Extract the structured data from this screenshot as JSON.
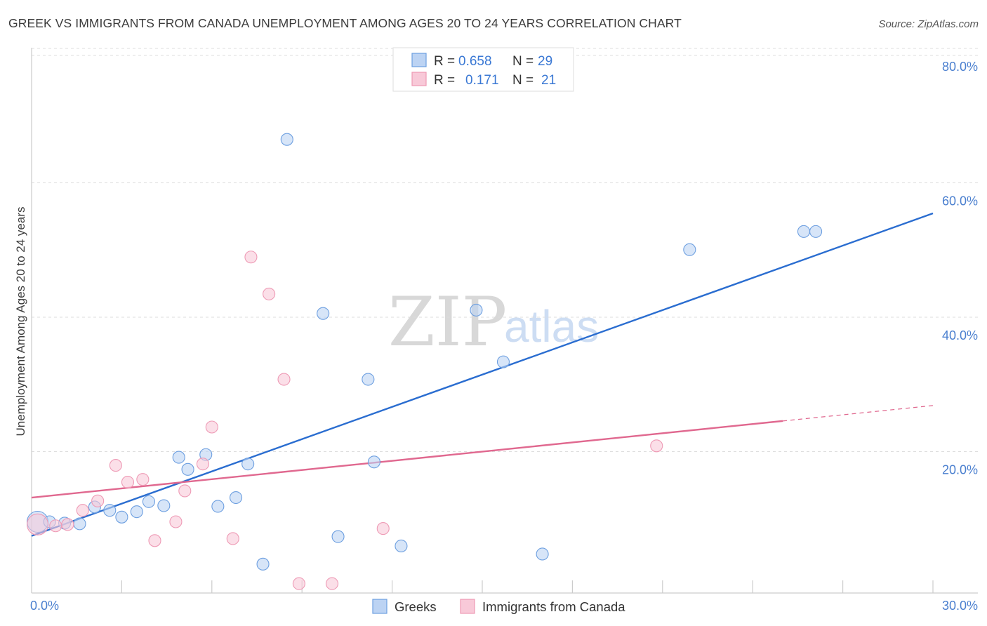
{
  "title": "GREEK VS IMMIGRANTS FROM CANADA UNEMPLOYMENT AMONG AGES 20 TO 24 YEARS CORRELATION CHART",
  "source": "Source: ZipAtlas.com",
  "watermark": {
    "zip": "ZIP",
    "atlas": "atlas"
  },
  "legend": {
    "r_label": "R =",
    "n_label": "N =",
    "series": [
      {
        "name": "Greeks",
        "r": "0.658",
        "n": "29"
      },
      {
        "name": "Immigrants from Canada",
        "r": "0.171",
        "n": "21"
      }
    ]
  },
  "chart_data": {
    "type": "scatter",
    "xlabel": "",
    "ylabel": "Unemployment Among Ages 20 to 24 years",
    "xlim": [
      0,
      30
    ],
    "ylim": [
      0,
      80
    ],
    "x_tick_labels": [
      "0.0%",
      "30.0%"
    ],
    "y_ticks": [
      20,
      40,
      60,
      80
    ],
    "y_tick_labels": [
      "20.0%",
      "40.0%",
      "60.0%",
      "80.0%"
    ],
    "series": [
      {
        "name": "Greeks",
        "color": "#6d9fe0",
        "fill": "#bcd3f3",
        "line_color": "#2a6dd0",
        "trend": {
          "x": [
            0,
            30
          ],
          "y": [
            8.5,
            56.5
          ]
        },
        "points": [
          {
            "x": 0.2,
            "y": 10.6,
            "big": true
          },
          {
            "x": 0.6,
            "y": 10.6
          },
          {
            "x": 1.1,
            "y": 10.4
          },
          {
            "x": 1.6,
            "y": 10.3
          },
          {
            "x": 2.1,
            "y": 12.8
          },
          {
            "x": 2.6,
            "y": 12.3
          },
          {
            "x": 3.0,
            "y": 11.3
          },
          {
            "x": 3.5,
            "y": 12.1
          },
          {
            "x": 3.9,
            "y": 13.6
          },
          {
            "x": 4.4,
            "y": 13.0
          },
          {
            "x": 4.9,
            "y": 20.2
          },
          {
            "x": 5.2,
            "y": 18.4
          },
          {
            "x": 5.8,
            "y": 20.6
          },
          {
            "x": 6.2,
            "y": 12.9
          },
          {
            "x": 6.8,
            "y": 14.2
          },
          {
            "x": 7.2,
            "y": 19.2
          },
          {
            "x": 7.7,
            "y": 4.3
          },
          {
            "x": 8.5,
            "y": 67.5
          },
          {
            "x": 9.7,
            "y": 41.6
          },
          {
            "x": 10.2,
            "y": 8.4
          },
          {
            "x": 11.2,
            "y": 31.8
          },
          {
            "x": 11.4,
            "y": 19.5
          },
          {
            "x": 12.3,
            "y": 7.0
          },
          {
            "x": 14.8,
            "y": 42.1
          },
          {
            "x": 15.7,
            "y": 34.4
          },
          {
            "x": 17.0,
            "y": 5.8
          },
          {
            "x": 21.9,
            "y": 51.1
          },
          {
            "x": 25.7,
            "y": 53.8
          },
          {
            "x": 26.1,
            "y": 53.8
          }
        ]
      },
      {
        "name": "Immigrants from Canada",
        "color": "#ee9ab5",
        "fill": "#f8c9d8",
        "line_color": "#e0688f",
        "trend": {
          "x": [
            0,
            25.0
          ],
          "y": [
            14.2,
            25.6
          ]
        },
        "trend_dashed": {
          "x": [
            25.0,
            30
          ],
          "y": [
            25.6,
            27.9
          ]
        },
        "points": [
          {
            "x": 0.2,
            "y": 10.2,
            "big": true
          },
          {
            "x": 0.8,
            "y": 10.0
          },
          {
            "x": 1.2,
            "y": 10.2
          },
          {
            "x": 1.7,
            "y": 12.3
          },
          {
            "x": 2.2,
            "y": 13.7
          },
          {
            "x": 2.8,
            "y": 19.0
          },
          {
            "x": 3.2,
            "y": 16.5
          },
          {
            "x": 3.7,
            "y": 16.9
          },
          {
            "x": 4.1,
            "y": 7.8
          },
          {
            "x": 4.8,
            "y": 10.6
          },
          {
            "x": 5.1,
            "y": 15.2
          },
          {
            "x": 5.7,
            "y": 19.2
          },
          {
            "x": 6.0,
            "y": 24.7
          },
          {
            "x": 6.7,
            "y": 8.1
          },
          {
            "x": 7.3,
            "y": 50.0
          },
          {
            "x": 7.9,
            "y": 44.5
          },
          {
            "x": 8.4,
            "y": 31.8
          },
          {
            "x": 8.9,
            "y": 1.4
          },
          {
            "x": 10.0,
            "y": 1.4
          },
          {
            "x": 11.7,
            "y": 9.6
          },
          {
            "x": 20.8,
            "y": 21.9
          }
        ]
      }
    ]
  }
}
